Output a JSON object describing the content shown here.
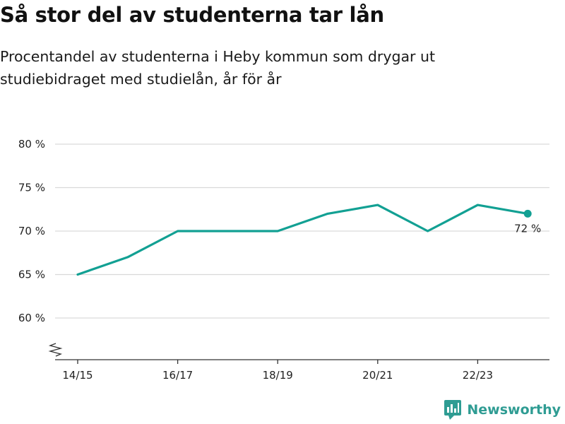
{
  "title": "Så stor del av studenterna tar lån",
  "subtitle": "Procentandel av studenterna i Heby kommun som drygar ut studiebidraget med studielån, år för år",
  "brand": {
    "name": "Newsworthy",
    "logo_icon": "bar-chart-speech-bubble-icon"
  },
  "colors": {
    "line": "#12a093",
    "grid": "#d9d9d9",
    "axis": "#333333",
    "brand": "#2f9c93"
  },
  "chart_data": {
    "type": "line",
    "x": [
      "14/15",
      "15/16",
      "16/17",
      "17/18",
      "18/19",
      "19/20",
      "20/21",
      "21/22",
      "22/23",
      "23/24"
    ],
    "series": [
      {
        "values": [
          65,
          67,
          70,
          70,
          70,
          72,
          73,
          70,
          73,
          72
        ]
      }
    ],
    "x_tick_labels": [
      "14/15",
      "16/17",
      "18/19",
      "20/21",
      "22/23"
    ],
    "y_ticks": [
      60,
      65,
      70,
      75,
      80
    ],
    "y_tick_labels": [
      "60 %",
      "65 %",
      "70 %",
      "75 %",
      "80 %"
    ],
    "ylim": [
      55,
      80
    ],
    "axis_break": true,
    "grid": true,
    "annotation": {
      "label": "72 %",
      "point": "23/24"
    }
  }
}
